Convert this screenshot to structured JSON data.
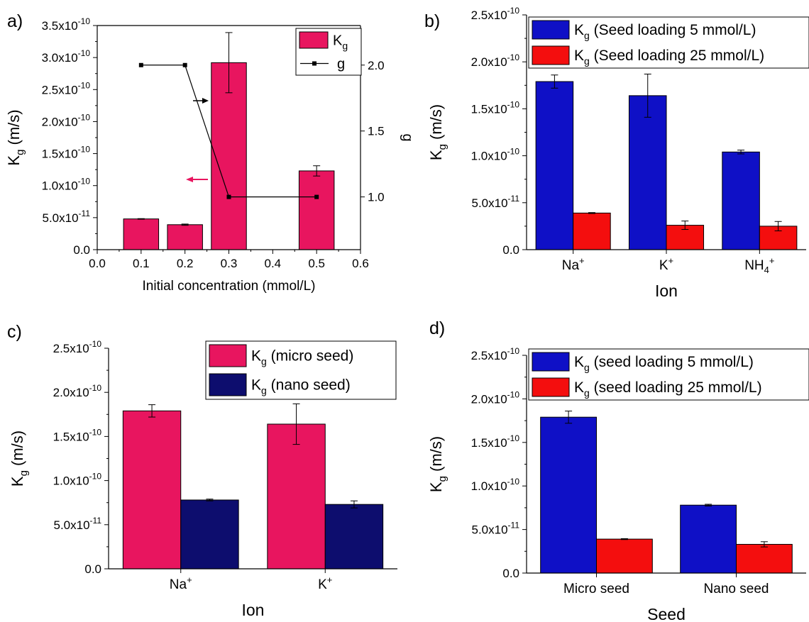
{
  "colors": {
    "pink": "#e8155f",
    "blue": "#0f10c6",
    "red": "#f40e0e",
    "navy": "#0d0d6e",
    "arrow_pink": "#e8155f"
  },
  "chart_data": [
    {
      "id": "a",
      "panel_label": "a)",
      "type": "bar",
      "x_numeric": true,
      "xlim": [
        0.0,
        0.6
      ],
      "xticks": [
        "0.0",
        "0.1",
        "0.2",
        "0.3",
        "0.4",
        "0.5",
        "0.6"
      ],
      "xlabel": "Initial concentration (mmol/L)",
      "ylabel_main": "K",
      "ylabel_sub": "g",
      "ylabel_unit": " (m/s)",
      "ylim": [
        0,
        3.5e-10
      ],
      "yticks": [
        {
          "v": 0,
          "m": "0.0",
          "e": ""
        },
        {
          "v": 5e-11,
          "m": "5.0x10",
          "e": "-11"
        },
        {
          "v": 1e-10,
          "m": "1.0x10",
          "e": "-10"
        },
        {
          "v": 1.5e-10,
          "m": "1.5x10",
          "e": "-10"
        },
        {
          "v": 2e-10,
          "m": "2.0x10",
          "e": "-10"
        },
        {
          "v": 2.5e-10,
          "m": "2.5x10",
          "e": "-10"
        },
        {
          "v": 3e-10,
          "m": "3.0x10",
          "e": "-10"
        },
        {
          "v": 3.5e-10,
          "m": "3.5x10",
          "e": "-10"
        }
      ],
      "bar_width": 0.08,
      "series": [
        {
          "name_main": "K",
          "name_sub": "g",
          "name_rest": "",
          "color": "#e8155f",
          "x": [
            0.1,
            0.2,
            0.3,
            0.5
          ],
          "values": [
            4.8e-11,
            3.9e-11,
            2.92e-10,
            1.23e-10
          ],
          "errors": [
            5e-13,
            1e-12,
            4.7e-11,
            8e-12
          ]
        }
      ],
      "secondary": {
        "ylabel": "g",
        "ylim": [
          0.6,
          2.3
        ],
        "yticks": [
          "1.0",
          "1.5",
          "2.0"
        ],
        "ytick_values": [
          1.0,
          1.5,
          2.0
        ],
        "line": {
          "name": "g",
          "x": [
            0.1,
            0.2,
            0.3,
            0.5
          ],
          "y": [
            2.0,
            2.0,
            1.0,
            1.0
          ]
        }
      },
      "legend_position": "top-right"
    },
    {
      "id": "b",
      "panel_label": "b)",
      "type": "bar",
      "categories": [
        {
          "main": "Na",
          "sup": "+",
          "sub": ""
        },
        {
          "main": "K",
          "sup": "+",
          "sub": ""
        },
        {
          "main": "NH",
          "sub": "4",
          "sup": "+"
        }
      ],
      "xlabel": "Ion",
      "ylabel_main": "K",
      "ylabel_sub": "g",
      "ylabel_unit": " (m/s)",
      "ylim": [
        0,
        2.5e-10
      ],
      "yticks": [
        {
          "v": 0,
          "m": "0.0",
          "e": ""
        },
        {
          "v": 5e-11,
          "m": "5.0x10",
          "e": "-11"
        },
        {
          "v": 1e-10,
          "m": "1.0x10",
          "e": "-10"
        },
        {
          "v": 1.5e-10,
          "m": "1.5x10",
          "e": "-10"
        },
        {
          "v": 2e-10,
          "m": "2.0x10",
          "e": "-10"
        },
        {
          "v": 2.5e-10,
          "m": "2.5x10",
          "e": "-10"
        }
      ],
      "series": [
        {
          "name_main": "K",
          "name_sub": "g",
          "name_rest": " (Seed loading 5 mmol/L)",
          "color": "#0f10c6",
          "values": [
            1.79e-10,
            1.64e-10,
            1.04e-10
          ],
          "errors": [
            7e-12,
            2.3e-11,
            2e-12
          ]
        },
        {
          "name_main": "K",
          "name_sub": "g",
          "name_rest": " (Seed loading 25 mmol/L)",
          "color": "#f40e0e",
          "values": [
            3.9e-11,
            2.6e-11,
            2.5e-11
          ],
          "errors": [
            5e-13,
            4.5e-12,
            5e-12
          ]
        }
      ],
      "legend_position": "top"
    },
    {
      "id": "c",
      "panel_label": "c)",
      "type": "bar",
      "categories": [
        {
          "main": "Na",
          "sup": "+",
          "sub": ""
        },
        {
          "main": "K",
          "sup": "+",
          "sub": ""
        }
      ],
      "xlabel": "Ion",
      "ylabel_main": "K",
      "ylabel_sub": "g",
      "ylabel_unit": " (m/s)",
      "ylim": [
        0,
        2.5e-10
      ],
      "yticks": [
        {
          "v": 0,
          "m": "0.0",
          "e": ""
        },
        {
          "v": 5e-11,
          "m": "5.0x10",
          "e": "-11"
        },
        {
          "v": 1e-10,
          "m": "1.0x10",
          "e": "-10"
        },
        {
          "v": 1.5e-10,
          "m": "1.5x10",
          "e": "-10"
        },
        {
          "v": 2e-10,
          "m": "2.0x10",
          "e": "-10"
        },
        {
          "v": 2.5e-10,
          "m": "2.5x10",
          "e": "-10"
        }
      ],
      "series": [
        {
          "name_main": "K",
          "name_sub": "g",
          "name_rest": " (micro seed)",
          "color": "#e8155f",
          "values": [
            1.79e-10,
            1.64e-10
          ],
          "errors": [
            7e-12,
            2.3e-11
          ]
        },
        {
          "name_main": "K",
          "name_sub": "g",
          "name_rest": " (nano seed)",
          "color": "#0d0d6e",
          "values": [
            7.8e-11,
            7.3e-11
          ],
          "errors": [
            1e-12,
            4e-12
          ]
        }
      ],
      "legend_position": "top-right"
    },
    {
      "id": "d",
      "panel_label": "d)",
      "type": "bar",
      "categories": [
        {
          "main": "Micro seed",
          "sup": "",
          "sub": ""
        },
        {
          "main": "Nano seed",
          "sup": "",
          "sub": ""
        }
      ],
      "xlabel": "Seed",
      "ylabel_main": "K",
      "ylabel_sub": "g",
      "ylabel_unit": " (m/s)",
      "ylim": [
        0,
        2.5e-10
      ],
      "yticks": [
        {
          "v": 0,
          "m": "0.0",
          "e": ""
        },
        {
          "v": 5e-11,
          "m": "5.0x10",
          "e": "-11"
        },
        {
          "v": 1e-10,
          "m": "1.0x10",
          "e": "-10"
        },
        {
          "v": 1.5e-10,
          "m": "1.5x10",
          "e": "-10"
        },
        {
          "v": 2e-10,
          "m": "2.0x10",
          "e": "-10"
        },
        {
          "v": 2.5e-10,
          "m": "2.5x10",
          "e": "-10"
        }
      ],
      "series": [
        {
          "name_main": "K",
          "name_sub": "g",
          "name_rest": " (seed loading 5 mmol/L)",
          "color": "#0f10c6",
          "values": [
            1.79e-10,
            7.8e-11
          ],
          "errors": [
            7e-12,
            1e-12
          ]
        },
        {
          "name_main": "K",
          "name_sub": "g",
          "name_rest": " (seed loading 25 mmol/L)",
          "color": "#f40e0e",
          "values": [
            3.9e-11,
            3.3e-11
          ],
          "errors": [
            5e-13,
            3e-12
          ]
        }
      ],
      "legend_position": "top-right"
    }
  ]
}
